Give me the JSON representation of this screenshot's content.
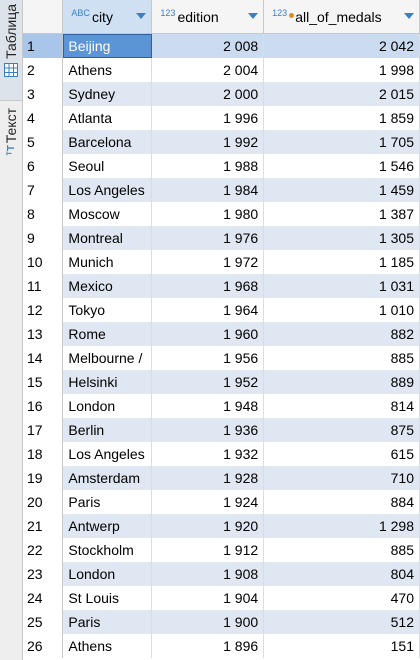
{
  "sidebar": {
    "tab_table_label": "Таблица",
    "tab_text_label": "Текст",
    "text_icon": "ᵀT"
  },
  "columns": {
    "city": {
      "label": "city",
      "type_badge": "ABC"
    },
    "edition": {
      "label": "edition",
      "type_badge": "123"
    },
    "medals": {
      "label": "all_of_medals",
      "type_badge": "123"
    }
  },
  "accent_color": "#3b7fc4",
  "selected_row": 1,
  "rows": [
    {
      "n": "1",
      "city": "Beijing",
      "edition": "2 008",
      "medals": "2 042"
    },
    {
      "n": "2",
      "city": "Athens",
      "edition": "2 004",
      "medals": "1 998"
    },
    {
      "n": "3",
      "city": "Sydney",
      "edition": "2 000",
      "medals": "2 015"
    },
    {
      "n": "4",
      "city": "Atlanta",
      "edition": "1 996",
      "medals": "1 859"
    },
    {
      "n": "5",
      "city": "Barcelona",
      "edition": "1 992",
      "medals": "1 705"
    },
    {
      "n": "6",
      "city": "Seoul",
      "edition": "1 988",
      "medals": "1 546"
    },
    {
      "n": "7",
      "city": "Los Angeles",
      "edition": "1 984",
      "medals": "1 459"
    },
    {
      "n": "8",
      "city": "Moscow",
      "edition": "1 980",
      "medals": "1 387"
    },
    {
      "n": "9",
      "city": "Montreal",
      "edition": "1 976",
      "medals": "1 305"
    },
    {
      "n": "10",
      "city": "Munich",
      "edition": "1 972",
      "medals": "1 185"
    },
    {
      "n": "11",
      "city": "Mexico",
      "edition": "1 968",
      "medals": "1 031"
    },
    {
      "n": "12",
      "city": "Tokyo",
      "edition": "1 964",
      "medals": "1 010"
    },
    {
      "n": "13",
      "city": "Rome",
      "edition": "1 960",
      "medals": "882"
    },
    {
      "n": "14",
      "city": "Melbourne /",
      "edition": "1 956",
      "medals": "885"
    },
    {
      "n": "15",
      "city": "Helsinki",
      "edition": "1 952",
      "medals": "889"
    },
    {
      "n": "16",
      "city": "London",
      "edition": "1 948",
      "medals": "814"
    },
    {
      "n": "17",
      "city": "Berlin",
      "edition": "1 936",
      "medals": "875"
    },
    {
      "n": "18",
      "city": "Los Angeles",
      "edition": "1 932",
      "medals": "615"
    },
    {
      "n": "19",
      "city": "Amsterdam",
      "edition": "1 928",
      "medals": "710"
    },
    {
      "n": "20",
      "city": "Paris",
      "edition": "1 924",
      "medals": "884"
    },
    {
      "n": "21",
      "city": "Antwerp",
      "edition": "1 920",
      "medals": "1 298"
    },
    {
      "n": "22",
      "city": "Stockholm",
      "edition": "1 912",
      "medals": "885"
    },
    {
      "n": "23",
      "city": "London",
      "edition": "1 908",
      "medals": "804"
    },
    {
      "n": "24",
      "city": "St Louis",
      "edition": "1 904",
      "medals": "470"
    },
    {
      "n": "25",
      "city": "Paris",
      "edition": "1 900",
      "medals": "512"
    },
    {
      "n": "26",
      "city": "Athens",
      "edition": "1 896",
      "medals": "151"
    }
  ]
}
